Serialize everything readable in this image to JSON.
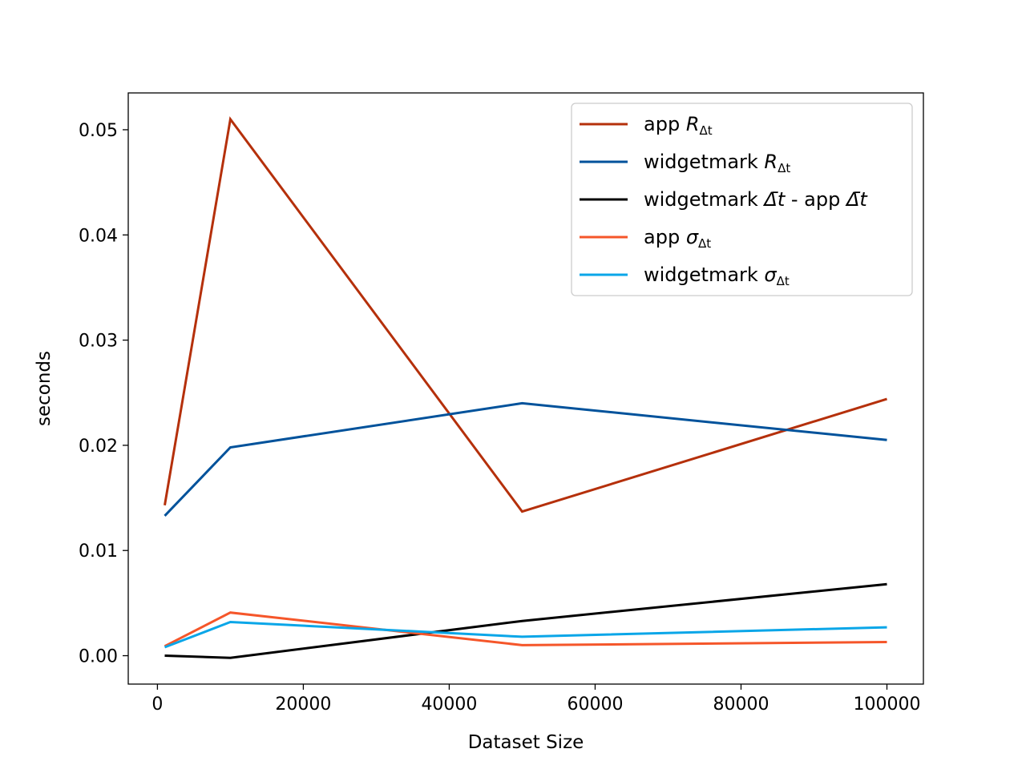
{
  "chart_data": {
    "type": "line",
    "title": "",
    "xlabel": "Dataset Size",
    "ylabel": "seconds",
    "xlim": [
      -4000,
      105000
    ],
    "ylim": [
      -0.0027,
      0.0535
    ],
    "xticks": [
      0,
      20000,
      40000,
      60000,
      80000,
      100000
    ],
    "xtick_labels": [
      "0",
      "20000",
      "40000",
      "60000",
      "80000",
      "100000"
    ],
    "yticks": [
      0.0,
      0.01,
      0.02,
      0.03,
      0.04,
      0.05
    ],
    "ytick_labels": [
      "0.00",
      "0.01",
      "0.02",
      "0.03",
      "0.04",
      "0.05"
    ],
    "grid": false,
    "legend": "top-right",
    "x": [
      1000,
      10000,
      50000,
      100000
    ],
    "series": [
      {
        "name": "app R_Δt",
        "label_parts": {
          "main": "app ",
          "sym": "R",
          "sub": "Δt"
        },
        "color": "#b5300b",
        "values": [
          0.0143,
          0.051,
          0.0137,
          0.0244
        ]
      },
      {
        "name": "widgetmark R_Δt",
        "label_parts": {
          "main": "widgetmark ",
          "sym": "R",
          "sub": "Δt"
        },
        "color": "#00529b",
        "values": [
          0.0133,
          0.0198,
          0.024,
          0.0205
        ]
      },
      {
        "name": "widgetmark Δ̄t - app Δ̄t",
        "label_parts": {
          "main": "widgetmark ",
          "sym": "Δ̄t",
          "mid": " - app ",
          "sym2": "Δ̄t"
        },
        "color": "#000000",
        "values": [
          0.0,
          -0.0002,
          0.0033,
          0.0068
        ]
      },
      {
        "name": "app σ_Δt",
        "label_parts": {
          "main": "app ",
          "sym": "σ",
          "sub": "Δt"
        },
        "color": "#f5562a",
        "values": [
          0.0009,
          0.0041,
          0.001,
          0.0013
        ]
      },
      {
        "name": "widgetmark σ_Δt",
        "label_parts": {
          "main": "widgetmark ",
          "sym": "σ",
          "sub": "Δt"
        },
        "color": "#0aa6e8",
        "values": [
          0.0008,
          0.0032,
          0.0018,
          0.0027
        ]
      }
    ]
  }
}
